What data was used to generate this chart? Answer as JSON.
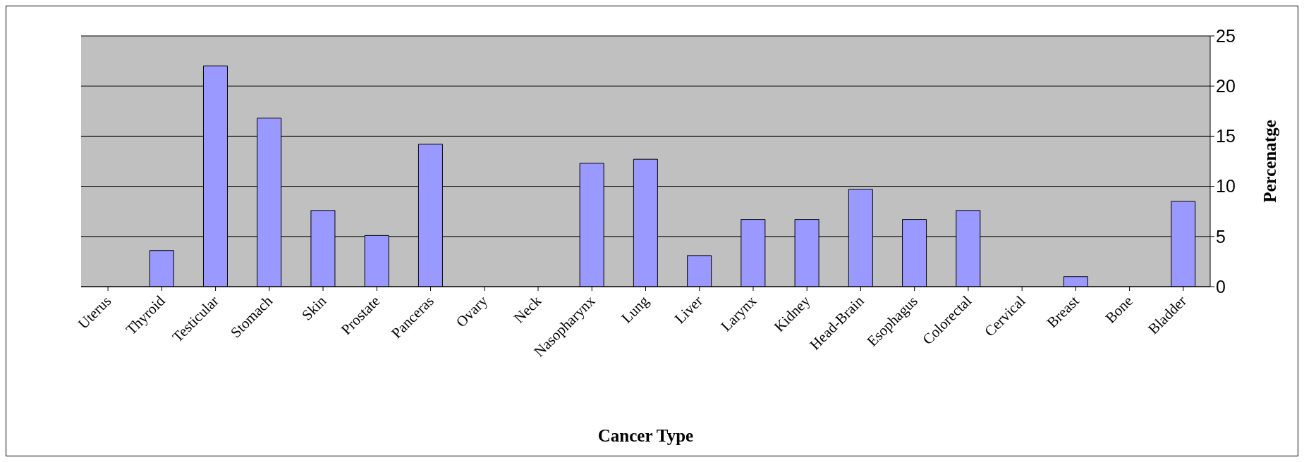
{
  "chart_data": {
    "type": "bar",
    "xlabel": "Cancer Type",
    "ylabel": "Percenatge",
    "categories": [
      "Uterus",
      "Thyroid",
      "Testicular",
      "Stomach",
      "Skin",
      "Prostate",
      "Panceras",
      "Ovary",
      "Neck",
      "Nasopharynx",
      "Lung",
      "Liver",
      "Larynx",
      "Kidney",
      "Head-Brain",
      "Esophagus",
      "Colorectal",
      "Cervical",
      "Breast",
      "Bone",
      "Bladder"
    ],
    "values": [
      0,
      3.6,
      22,
      16.8,
      7.6,
      5.1,
      14.2,
      0,
      0,
      12.3,
      12.7,
      3.1,
      6.7,
      6.7,
      9.7,
      6.7,
      7.6,
      0,
      1,
      0,
      8.5
    ],
    "color": "#9999ff",
    "ylim": [
      0,
      25
    ],
    "yticks": [
      0,
      5,
      10,
      15,
      20,
      25
    ],
    "grid": "y",
    "legend": false
  }
}
